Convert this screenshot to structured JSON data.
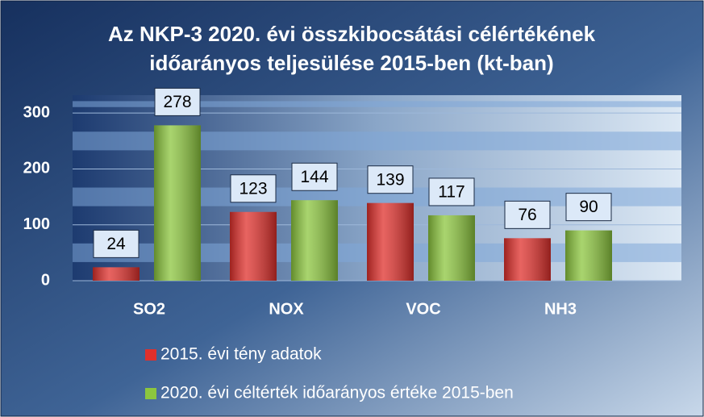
{
  "chart_data": {
    "type": "bar",
    "title": "Az NKP-3 2020. évi összkibocsátási célértékének időarányos teljesülése 2015-ben (kt-ban)",
    "categories": [
      "SO2",
      "NOX",
      "VOC",
      "NH3"
    ],
    "series": [
      {
        "name": "2015. évi tény adatok",
        "color": "#e0302c",
        "values": [
          24,
          123,
          139,
          76
        ]
      },
      {
        "name": "2020. évi céltérték időarányos értéke 2015-ben",
        "color": "#8cc63e",
        "values": [
          278,
          144,
          117,
          90
        ]
      }
    ],
    "ylim": [
      0,
      332
    ],
    "yticks": [
      0,
      100,
      200,
      300
    ],
    "grid": true,
    "legend": "bottom"
  }
}
